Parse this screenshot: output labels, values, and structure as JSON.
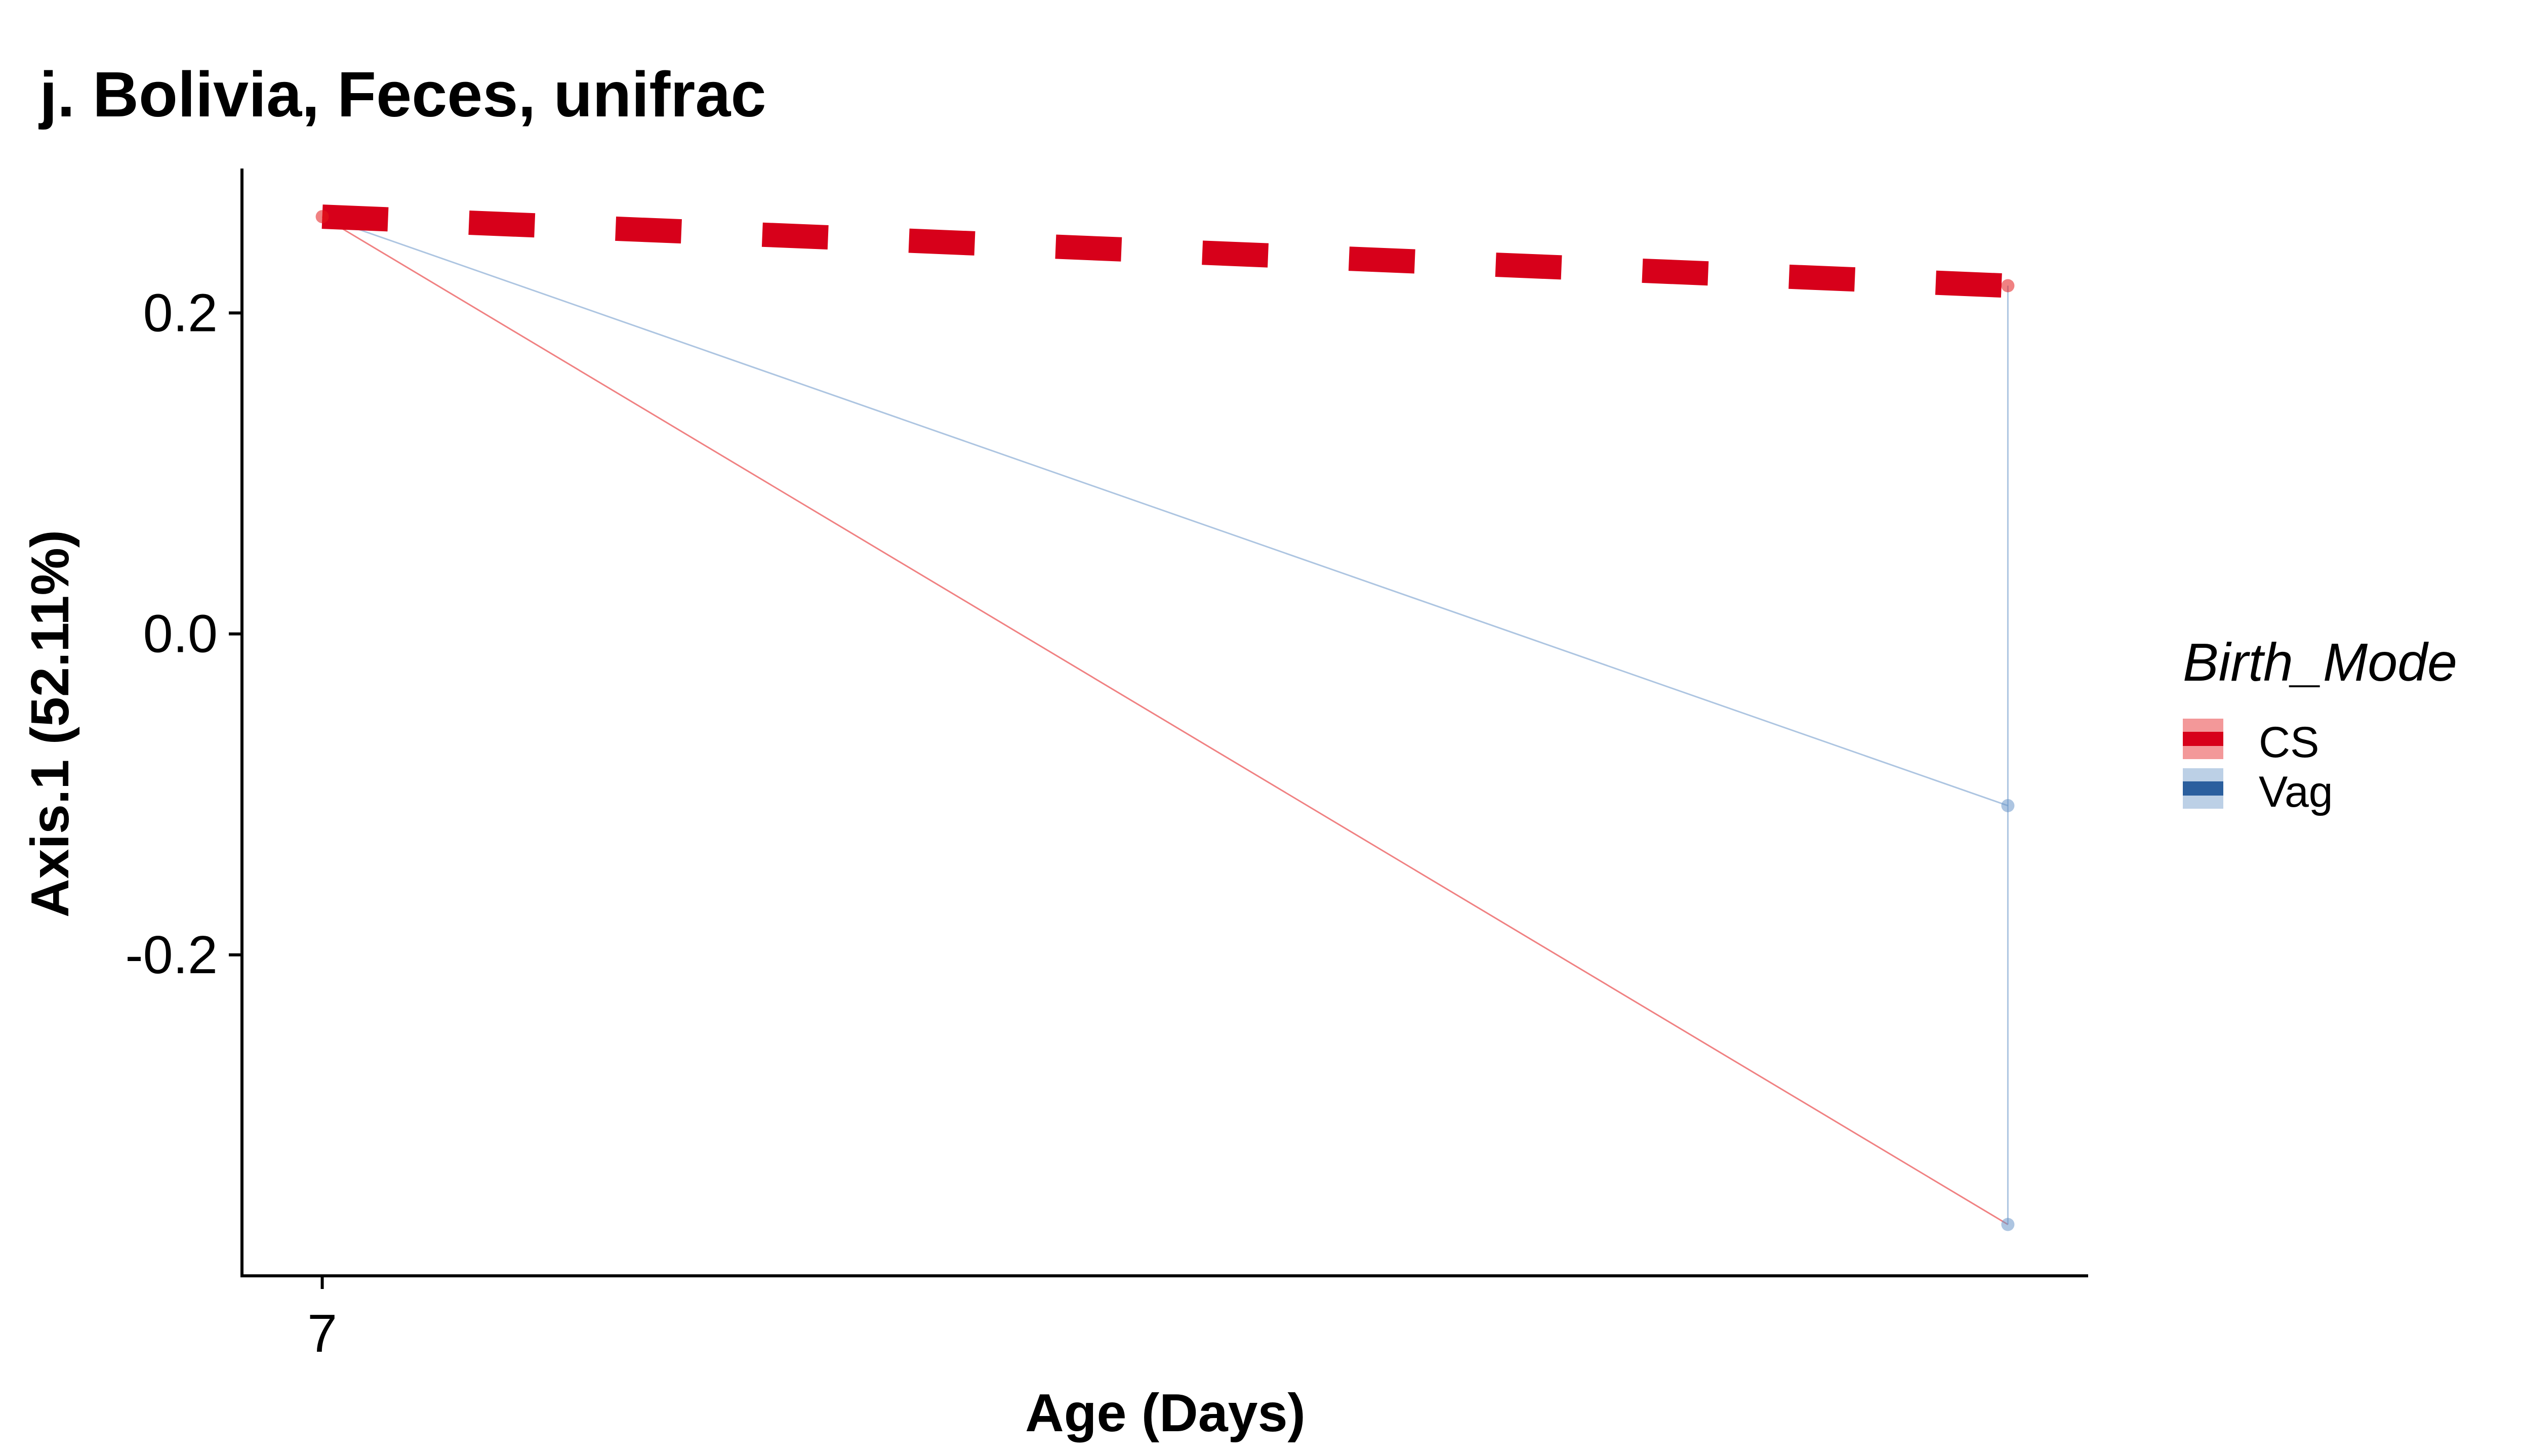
{
  "chart_data": {
    "type": "line",
    "title": "j. Bolivia, Feces, unifrac",
    "xlabel": "Age (Days)",
    "ylabel": "Axis.1 (52.11%)",
    "xlim": [
      6.6,
      15.8
    ],
    "ylim": [
      -0.4,
      0.29
    ],
    "x_ticks": [
      {
        "value": 7,
        "label": "7"
      }
    ],
    "y_ticks": [
      {
        "value": 0.2,
        "label": "0.2"
      },
      {
        "value": 0.0,
        "label": "0.0"
      },
      {
        "value": -0.2,
        "label": "-0.2"
      }
    ],
    "grid": false,
    "legend": {
      "title": "Birth_Mode",
      "position": "right",
      "entries": [
        {
          "label": "CS",
          "color": "#e41a1c",
          "trend_color": "#d7001a"
        },
        {
          "label": "Vag",
          "color": "#6a96c8",
          "trend_color": "#2b5f9e"
        }
      ]
    },
    "series": [
      {
        "name": "CS",
        "color": "#e41a1c",
        "paths": [
          [
            {
              "x": 7,
              "y": 0.26
            },
            {
              "x": 15.4,
              "y": -0.368
            }
          ]
        ],
        "points": [
          {
            "x": 7,
            "y": 0.26
          },
          {
            "x": 15.4,
            "y": 0.217
          }
        ]
      },
      {
        "name": "Vag",
        "color": "#6a96c8",
        "paths": [
          [
            {
              "x": 7,
              "y": 0.26
            },
            {
              "x": 15.4,
              "y": -0.107
            }
          ],
          [
            {
              "x": 15.4,
              "y": 0.217
            },
            {
              "x": 15.4,
              "y": -0.368
            }
          ]
        ],
        "points": [
          {
            "x": 15.4,
            "y": -0.107
          },
          {
            "x": 15.4,
            "y": -0.368
          }
        ]
      }
    ],
    "trend": {
      "series": "CS",
      "color": "#d7001a",
      "style": "dashed",
      "values": [
        {
          "x": 7,
          "y": 0.26
        },
        {
          "x": 15.4,
          "y": 0.217
        }
      ]
    }
  }
}
